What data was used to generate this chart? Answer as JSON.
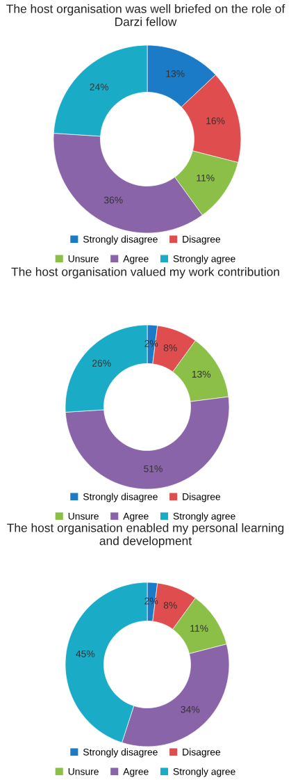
{
  "chart_data": [
    {
      "type": "donut",
      "title": "The host organisation was well briefed on the role of Darzi fellow",
      "categories": [
        "Strongly disagree",
        "Disagree",
        "Unsure",
        "Agree",
        "Strongly agree"
      ],
      "values": [
        13,
        16,
        11,
        36,
        24
      ],
      "value_labels": [
        "13%",
        "16%",
        "11%",
        "36%",
        "24%"
      ],
      "colors": [
        "#1b7bc6",
        "#e04d4f",
        "#8cbf48",
        "#8964a8",
        "#1aabc7"
      ],
      "legend": "bottom"
    },
    {
      "type": "donut",
      "title": "The host organisation valued my work contribution",
      "categories": [
        "Strongly disagree",
        "Disagree",
        "Unsure",
        "Agree",
        "Strongly agree"
      ],
      "values": [
        2,
        8,
        13,
        51,
        26
      ],
      "value_labels": [
        "2%",
        "8%",
        "13%",
        "51%",
        "26%"
      ],
      "colors": [
        "#1b7bc6",
        "#e04d4f",
        "#8cbf48",
        "#8964a8",
        "#1aabc7"
      ],
      "legend": "bottom"
    },
    {
      "type": "donut",
      "title": "The host organisation enabled my personal learning and development",
      "categories": [
        "Strongly disagree",
        "Disagree",
        "Unsure",
        "Agree",
        "Strongly agree"
      ],
      "values": [
        2,
        8,
        11,
        34,
        45
      ],
      "value_labels": [
        "2%",
        "8%",
        "11%",
        "34%",
        "45%"
      ],
      "colors": [
        "#1b7bc6",
        "#e04d4f",
        "#8cbf48",
        "#8964a8",
        "#1aabc7"
      ],
      "legend": "bottom"
    }
  ]
}
